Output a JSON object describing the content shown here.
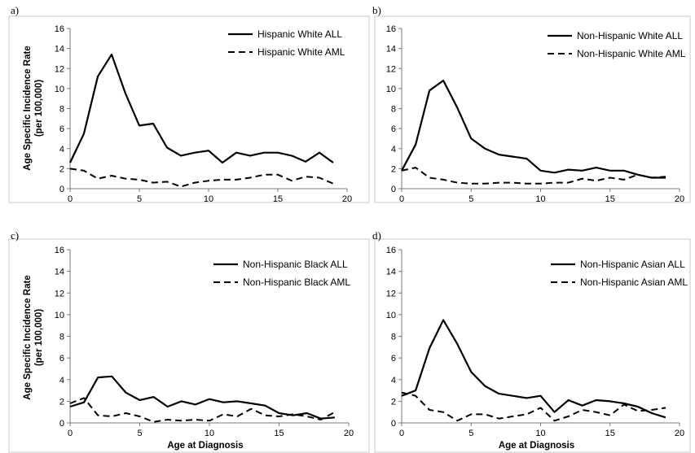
{
  "chart_data": [
    {
      "type": "line",
      "panel_label": "a)",
      "ylabel": [
        "Age Specific Incidence Rate",
        "(per 100,000)"
      ],
      "xlabel": "",
      "xlim": [
        0,
        20
      ],
      "ylim": [
        0,
        16
      ],
      "xticks": [
        0,
        5,
        10,
        15,
        20
      ],
      "yticks": [
        0,
        2,
        4,
        6,
        8,
        10,
        12,
        14,
        16
      ],
      "x": [
        0,
        1,
        2,
        3,
        4,
        5,
        6,
        7,
        8,
        9,
        10,
        11,
        12,
        13,
        14,
        15,
        16,
        17,
        18,
        19
      ],
      "series": [
        {
          "name": "Hispanic White ALL",
          "style": "solid",
          "values": [
            2.6,
            5.5,
            11.2,
            13.4,
            9.5,
            6.3,
            6.5,
            4.1,
            3.3,
            3.6,
            3.8,
            2.6,
            3.6,
            3.3,
            3.6,
            3.6,
            3.3,
            2.7,
            3.6,
            2.6
          ]
        },
        {
          "name": "Hispanic White AML",
          "style": "dashed",
          "values": [
            2.0,
            1.8,
            1.0,
            1.3,
            1.0,
            0.9,
            0.6,
            0.7,
            0.2,
            0.6,
            0.8,
            0.9,
            0.9,
            1.1,
            1.4,
            1.4,
            0.8,
            1.2,
            1.1,
            0.5
          ]
        }
      ]
    },
    {
      "type": "line",
      "panel_label": "b)",
      "ylabel": [
        "",
        ""
      ],
      "xlabel": "",
      "xlim": [
        0,
        20
      ],
      "ylim": [
        0,
        16
      ],
      "xticks": [
        0,
        5,
        10,
        15,
        20
      ],
      "yticks": [
        0,
        2,
        4,
        6,
        8,
        10,
        12,
        14,
        16
      ],
      "x": [
        0,
        1,
        2,
        3,
        4,
        5,
        6,
        7,
        8,
        9,
        10,
        11,
        12,
        13,
        14,
        15,
        16,
        17,
        18,
        19
      ],
      "series": [
        {
          "name": "Non-Hispanic White ALL",
          "style": "solid",
          "values": [
            1.8,
            4.4,
            9.8,
            10.8,
            8.1,
            5.0,
            4.0,
            3.4,
            3.2,
            3.0,
            1.8,
            1.6,
            1.9,
            1.8,
            2.1,
            1.8,
            1.8,
            1.4,
            1.1,
            1.1
          ]
        },
        {
          "name": "Non-Hispanic White AML",
          "style": "dashed",
          "values": [
            1.8,
            2.1,
            1.1,
            0.9,
            0.6,
            0.5,
            0.5,
            0.6,
            0.6,
            0.5,
            0.5,
            0.6,
            0.6,
            1.0,
            0.8,
            1.1,
            0.9,
            1.4,
            1.1,
            1.2
          ]
        }
      ]
    },
    {
      "type": "line",
      "panel_label": "c)",
      "ylabel": [
        "Age Specific Incidence Rate",
        "(per 100,000)"
      ],
      "xlabel": "Age at Diagnosis",
      "xlim": [
        0,
        20
      ],
      "ylim": [
        0,
        16
      ],
      "xticks": [
        0,
        5,
        10,
        15,
        20
      ],
      "yticks": [
        0,
        2,
        4,
        6,
        8,
        10,
        12,
        14,
        16
      ],
      "x": [
        0,
        1,
        2,
        3,
        4,
        5,
        6,
        7,
        8,
        9,
        10,
        11,
        12,
        13,
        14,
        15,
        16,
        17,
        18,
        19
      ],
      "series": [
        {
          "name": "Non-Hispanic Black ALL",
          "style": "solid",
          "values": [
            1.5,
            1.9,
            4.2,
            4.3,
            2.8,
            2.1,
            2.4,
            1.5,
            2.0,
            1.7,
            2.2,
            1.9,
            2.0,
            1.8,
            1.6,
            0.9,
            0.7,
            0.9,
            0.4,
            0.5
          ]
        },
        {
          "name": "Non-Hispanic Black AML",
          "style": "dashed",
          "values": [
            1.8,
            2.3,
            0.7,
            0.6,
            0.9,
            0.6,
            0.1,
            0.3,
            0.2,
            0.3,
            0.2,
            0.8,
            0.6,
            1.3,
            0.7,
            0.6,
            0.8,
            0.6,
            0.3,
            1.0
          ]
        }
      ]
    },
    {
      "type": "line",
      "panel_label": "d)",
      "ylabel": [
        "",
        ""
      ],
      "xlabel": "Age at Diagnosis",
      "xlim": [
        0,
        20
      ],
      "ylim": [
        0,
        16
      ],
      "xticks": [
        0,
        5,
        10,
        15,
        20
      ],
      "yticks": [
        0,
        2,
        4,
        6,
        8,
        10,
        12,
        14,
        16
      ],
      "x": [
        0,
        1,
        2,
        3,
        4,
        5,
        6,
        7,
        8,
        9,
        10,
        11,
        12,
        13,
        14,
        15,
        16,
        17,
        18,
        19
      ],
      "series": [
        {
          "name": "Non-Hispanic Asian ALL",
          "style": "solid",
          "values": [
            2.5,
            3.0,
            6.9,
            9.5,
            7.3,
            4.7,
            3.4,
            2.7,
            2.5,
            2.3,
            2.5,
            1.0,
            2.1,
            1.6,
            2.1,
            2.0,
            1.8,
            1.5,
            0.9,
            0.5
          ]
        },
        {
          "name": "Non-Hispanic Asian AML",
          "style": "dashed",
          "values": [
            2.8,
            2.5,
            1.2,
            1.0,
            0.2,
            0.8,
            0.8,
            0.4,
            0.6,
            0.8,
            1.4,
            0.2,
            0.6,
            1.2,
            1.0,
            0.7,
            1.7,
            1.1,
            1.2,
            1.4
          ]
        }
      ]
    }
  ]
}
